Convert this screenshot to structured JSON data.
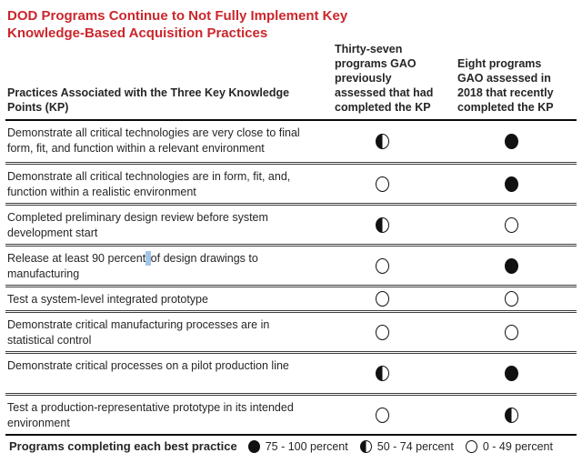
{
  "title": "DOD Programs Continue to Not Fully Implement Key Knowledge-Based Acquisition Practices",
  "colors": {
    "title_red": "#CB262C",
    "text": "#262626",
    "circle_black": "#111111",
    "text_cursor_blue": "#A3C6E8"
  },
  "table": {
    "headers": {
      "practices": "Practices Associated with the Three Key Knowledge Points (KP)",
      "previously_assessed": "Thirty-seven\nprograms GAO\npreviously\nassessed that had\ncompleted the KP",
      "assessed_2018": "Eight programs\nGAO assessed in\n2018 that recently\ncompleted the KP"
    },
    "rating_values": [
      "full",
      "half",
      "empty"
    ],
    "rows": [
      {
        "practice": "Demonstrate all critical technologies are very close to final form, fit, and function within a relevant environment",
        "previously_assessed": "half",
        "assessed_2018": "full"
      },
      {
        "practice": "Demonstrate all critical technologies are in form, fit, and, function within a realistic environment",
        "previously_assessed": "empty",
        "assessed_2018": "full"
      },
      {
        "practice": "Completed preliminary design review before system development start",
        "previously_assessed": "half",
        "assessed_2018": "empty"
      },
      {
        "practice_pre": "Release at least 90 percent",
        "cursor": " ",
        "practice_post": "of design drawings to manufacturing",
        "previously_assessed": "empty",
        "assessed_2018": "full"
      },
      {
        "practice": "Test a system-level integrated prototype",
        "previously_assessed": "empty",
        "assessed_2018": "empty"
      },
      {
        "practice": "Demonstrate critical manufacturing processes are in statistical control",
        "previously_assessed": "empty",
        "assessed_2018": "empty"
      },
      {
        "practice": "Demonstrate critical processes on a pilot production line",
        "previously_assessed": "half",
        "assessed_2018": "full"
      },
      {
        "practice": "Test a production-representative prototype in its intended environment",
        "previously_assessed": "empty",
        "assessed_2018": "half"
      }
    ]
  },
  "legend": {
    "label": "Programs completing each best practice",
    "items": [
      {
        "symbol": "full",
        "label": "75 - 100 percent"
      },
      {
        "symbol": "half",
        "label": "50 - 74 percent"
      },
      {
        "symbol": "empty",
        "label": "0 - 49 percent"
      }
    ]
  }
}
